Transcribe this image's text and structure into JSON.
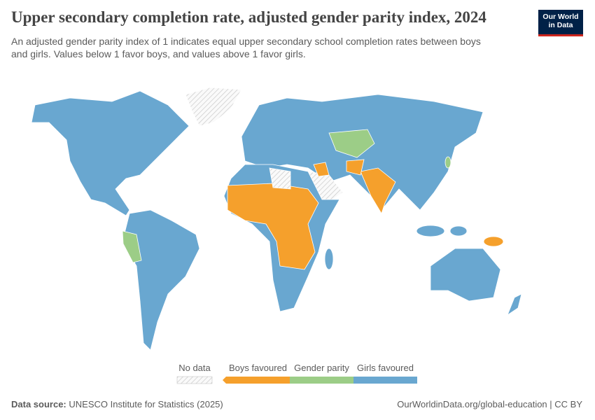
{
  "header": {
    "title": "Upper secondary completion rate, adjusted gender parity index, 2024",
    "subtitle": [
      "An adjusted gender parity index of 1 indicates equal upper secondary school completion rates between boys",
      "and girls. Values below 1 favor boys, and values above 1 favor girls."
    ],
    "logo": [
      "Our World",
      "in Data"
    ]
  },
  "legend": {
    "no_data": "No data",
    "items": [
      {
        "label": "Boys favoured",
        "color": "#f5a02c"
      },
      {
        "label": "Gender parity",
        "color": "#9ccd87"
      },
      {
        "label": "Girls favoured",
        "color": "#69a7d0"
      }
    ]
  },
  "footer": {
    "source_label": "Data source:",
    "source": "UNESCO Institute for Statistics (2025)",
    "link": "OurWorldinData.org/global-education | CC BY"
  }
}
